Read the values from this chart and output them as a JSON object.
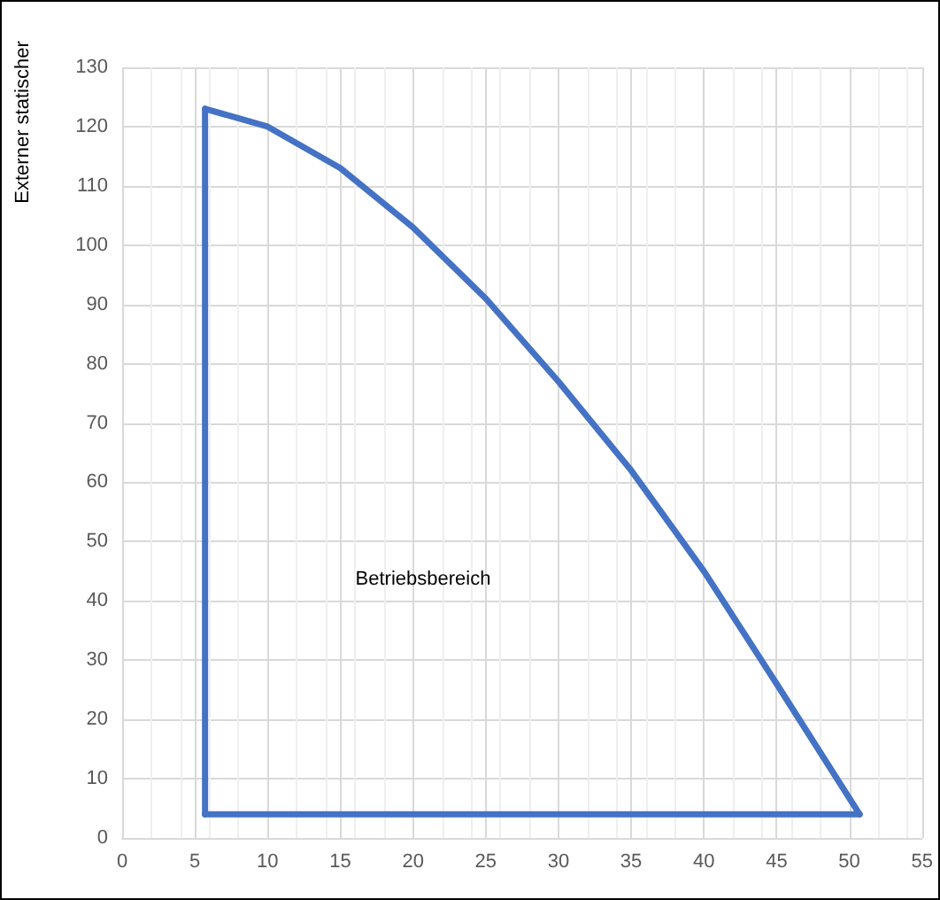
{
  "chart_data": {
    "type": "line",
    "ylabel": "Externer statischer",
    "series": [
      {
        "color": "#4472c4",
        "x": [
          5.7,
          5.7
        ],
        "values": [
          4,
          123
        ]
      },
      {
        "color": "#4472c4",
        "x": [
          5.7,
          10,
          15,
          20,
          25,
          30,
          35,
          40,
          45,
          50.7
        ],
        "values": [
          123,
          120,
          113,
          103,
          91,
          77,
          62,
          45,
          26,
          4
        ]
      },
      {
        "color": "#4472c4",
        "x": [
          5.7,
          50.7
        ],
        "values": [
          4,
          4
        ]
      }
    ],
    "annotations": [
      "Betriebsbereich"
    ],
    "xlim": [
      0,
      55
    ],
    "xticks": [
      0,
      5,
      10,
      15,
      20,
      25,
      30,
      35,
      40,
      45,
      50,
      55
    ],
    "ylim": [
      0,
      130
    ],
    "yticks": [
      0,
      10,
      20,
      30,
      40,
      50,
      60,
      70,
      80,
      90,
      100,
      110,
      120,
      130
    ],
    "grid": true,
    "marker": "none",
    "line_style": "solid"
  }
}
